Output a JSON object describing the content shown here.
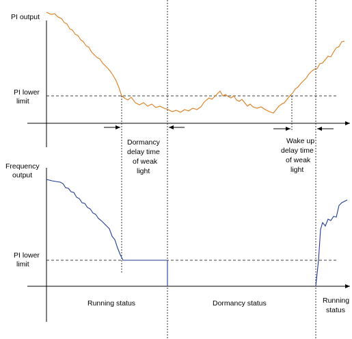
{
  "colors": {
    "pi_curve": "#e07b1a",
    "freq_curve": "#1f3a93",
    "axis": "#000000",
    "dashed": "#000000"
  },
  "top_chart": {
    "y_label": "PI output",
    "threshold_label_line1": "PI lower",
    "threshold_label_line2": "limit"
  },
  "annotations": {
    "dormancy_delay": [
      "Dormancy",
      "delay time",
      "of weak",
      "light"
    ],
    "wakeup_delay": [
      "Wake up",
      "delay time",
      "of weak",
      "light"
    ]
  },
  "bottom_chart": {
    "y_label_line1": "Frequency",
    "y_label_line2": "output",
    "threshold_label_line1": "PI lower",
    "threshold_label_line2": "limit"
  },
  "status_labels": {
    "running": "Running status",
    "dormancy": "Dormancy status",
    "running_end_line1": "Running",
    "running_end_line2": "status"
  }
}
